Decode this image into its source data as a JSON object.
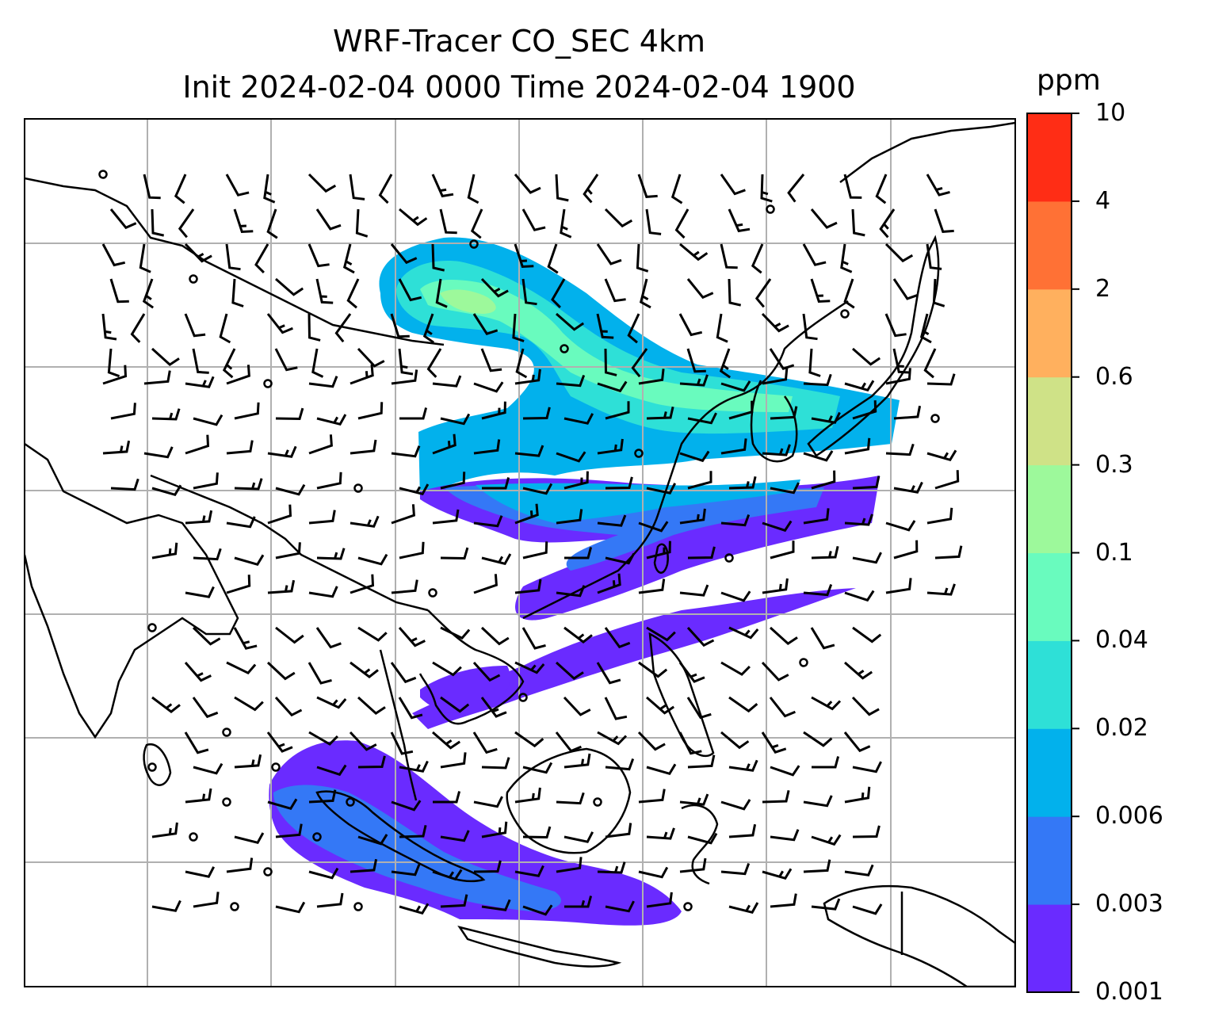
{
  "title_line1": "WRF-Tracer CO_SEC 4km",
  "title_line2": "Init 2024-02-04 0000 Time 2024-02-04 1900",
  "colorbar": {
    "unit": "ppm",
    "levels": [
      "0.001",
      "0.003",
      "0.006",
      "0.02",
      "0.04",
      "0.1",
      "0.3",
      "0.6",
      "2",
      "4",
      "10"
    ],
    "colors": [
      "#6a2bff",
      "#3478f6",
      "#02b1ec",
      "#2ee0d7",
      "#69fbbe",
      "#9df99b",
      "#cfe287",
      "#ffb05e",
      "#ff7135",
      "#ff2d15"
    ]
  },
  "map": {
    "field": "CO_SEC tracer concentration",
    "overlay": "wind barbs",
    "gridlines": true,
    "coastlines": true,
    "country_borders": true
  }
}
